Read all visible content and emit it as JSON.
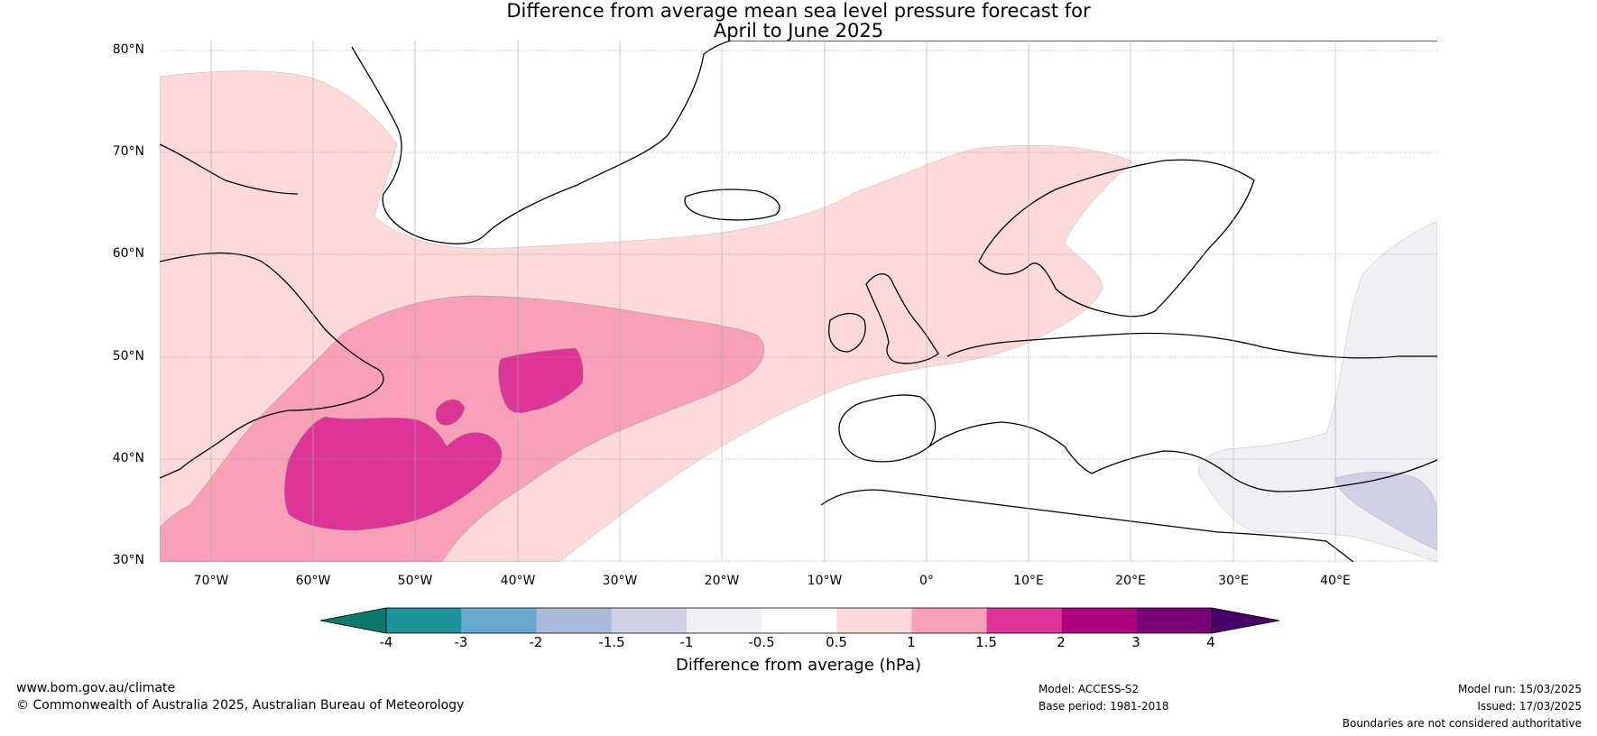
{
  "title": {
    "line1": "Difference from average mean sea level pressure forecast for",
    "line2": "April to June 2025"
  },
  "axes": {
    "latitudes": [
      "80°N",
      "70°N",
      "60°N",
      "50°N",
      "40°N",
      "30°N"
    ],
    "longitudes": [
      "70°W",
      "60°W",
      "50°W",
      "40°W",
      "30°W",
      "20°W",
      "10°W",
      "0°",
      "10°E",
      "20°E",
      "30°E",
      "40°E"
    ],
    "lat_range": [
      30,
      80
    ],
    "lon_range": [
      -75,
      50
    ]
  },
  "colorbar": {
    "label": "Difference from average (hPa)",
    "ticks": [
      "-4",
      "-3",
      "-2",
      "-1.5",
      "-1",
      "-0.5",
      "0.5",
      "1",
      "1.5",
      "2",
      "3",
      "4"
    ],
    "colors": [
      "#0b7a6a",
      "#1d9399",
      "#66a8cf",
      "#a8b9da",
      "#d0d0e4",
      "#f1eef4",
      "#ffffff",
      "#fdd9d9",
      "#f7a0b8",
      "#dd3497",
      "#ae017e",
      "#7a0177",
      "#49006a"
    ]
  },
  "contour_levels": {
    "light_pink": "0.5 to 1",
    "mid_pink": "1 to 1.5",
    "magenta": "1.5 to 2",
    "lavender": "-1 to -0.5",
    "light_blue": "-1.5 to -1"
  },
  "footer": {
    "website": "www.bom.gov.au/climate",
    "copyright": "© Commonwealth of Australia 2025, Australian Bureau of Meteorology",
    "model": "Model: ACCESS-S2",
    "base_period": "Base period: 1981-2018",
    "model_run": "Model run: 15/03/2025",
    "issued": "Issued: 17/03/2025",
    "disclaimer": "Boundaries are not considered authoritative"
  }
}
